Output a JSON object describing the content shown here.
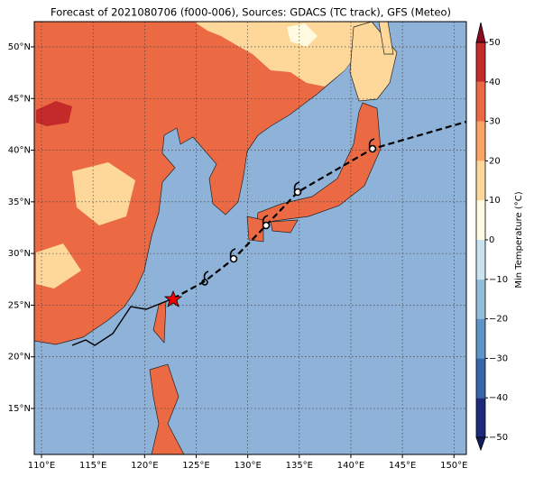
{
  "map": {
    "title": "Forecast of 2021080706 (f000-006), Sources: GDACS (TC track), GFS (Meteo)",
    "xlim": [
      109.3,
      151.2
    ],
    "ylim": [
      10.55,
      52.44
    ],
    "lon_ticks": [
      {
        "value": 110,
        "label": "110°E"
      },
      {
        "value": 115,
        "label": "115°E"
      },
      {
        "value": 120,
        "label": "120°E"
      },
      {
        "value": 125,
        "label": "125°E"
      },
      {
        "value": 130,
        "label": "130°E"
      },
      {
        "value": 135,
        "label": "135°E"
      },
      {
        "value": 140,
        "label": "140°E"
      },
      {
        "value": 145,
        "label": "145°E"
      },
      {
        "value": 150,
        "label": "150°E"
      }
    ],
    "lat_ticks": [
      {
        "value": 15,
        "label": "15°N"
      },
      {
        "value": 20,
        "label": "20°N"
      },
      {
        "value": 25,
        "label": "25°N"
      },
      {
        "value": 30,
        "label": "30°N"
      },
      {
        "value": 35,
        "label": "35°N"
      },
      {
        "value": 40,
        "label": "40°N"
      },
      {
        "value": 45,
        "label": "45°N"
      },
      {
        "value": 50,
        "label": "50°N"
      }
    ],
    "grid": true
  },
  "colorbar": {
    "label": "Min Temperature (°C)",
    "ticks": [
      {
        "value": -50,
        "label": "−50"
      },
      {
        "value": -40,
        "label": "−40"
      },
      {
        "value": -30,
        "label": "−30"
      },
      {
        "value": -20,
        "label": "−20"
      },
      {
        "value": -10,
        "label": "−10"
      },
      0,
      10,
      20,
      30,
      40,
      50
    ],
    "colors": [
      "#1f2a7a",
      "#3566a8",
      "#5f95c6",
      "#93bedb",
      "#c9e3ef",
      "#fffbe0",
      "#fdd89a",
      "#fba465",
      "#ec6a43",
      "#c42a2a"
    ],
    "under_color": "#141c5e",
    "over_color": "#8c0a1f"
  }
}
